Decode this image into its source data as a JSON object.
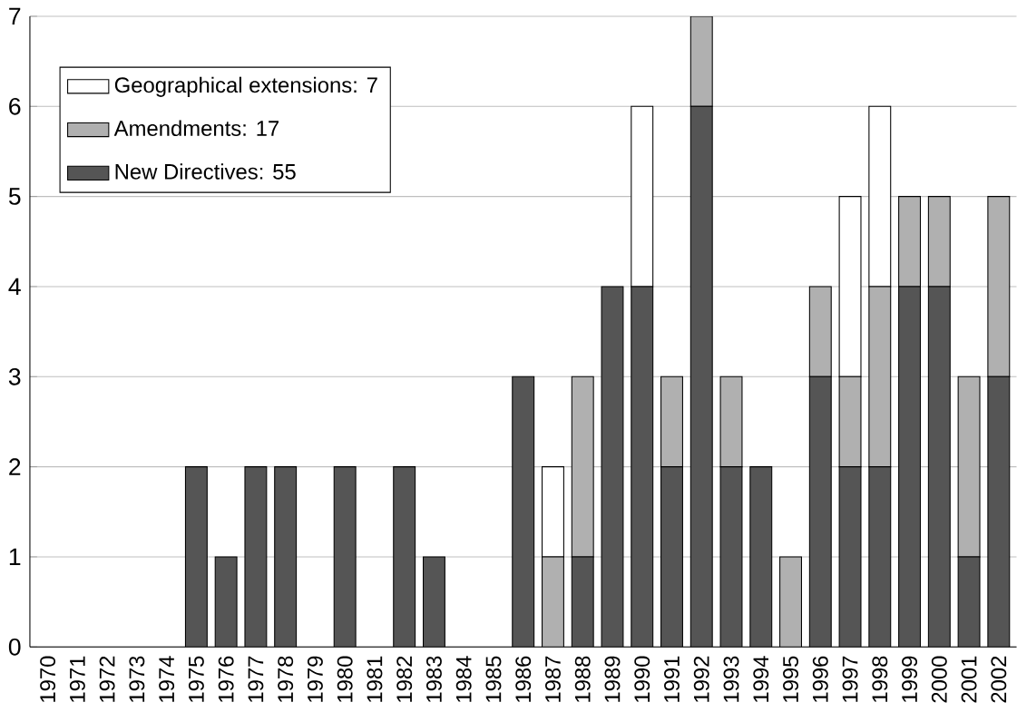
{
  "chart_data": {
    "type": "bar",
    "stacked": true,
    "categories": [
      "1970",
      "1971",
      "1972",
      "1973",
      "1974",
      "1975",
      "1976",
      "1977",
      "1978",
      "1979",
      "1980",
      "1981",
      "1982",
      "1983",
      "1984",
      "1985",
      "1986",
      "1987",
      "1988",
      "1989",
      "1990",
      "1991",
      "1992",
      "1993",
      "1994",
      "1995",
      "1996",
      "1997",
      "1998",
      "1999",
      "2000",
      "2001",
      "2002"
    ],
    "series": [
      {
        "name": "New Directives: 55",
        "color": "#555555",
        "values": [
          0,
          0,
          0,
          0,
          0,
          2,
          1,
          2,
          2,
          0,
          2,
          0,
          2,
          1,
          0,
          0,
          3,
          0,
          1,
          4,
          4,
          2,
          6,
          2,
          2,
          0,
          3,
          2,
          2,
          4,
          4,
          1,
          3
        ]
      },
      {
        "name": "Amendments: 17",
        "color": "#b0b0b0",
        "values": [
          0,
          0,
          0,
          0,
          0,
          0,
          0,
          0,
          0,
          0,
          0,
          0,
          0,
          0,
          0,
          0,
          0,
          1,
          2,
          0,
          0,
          1,
          1,
          1,
          0,
          1,
          1,
          1,
          2,
          1,
          1,
          2,
          2
        ]
      },
      {
        "name": "Geographical extensions: 7",
        "color": "#ffffff",
        "values": [
          0,
          0,
          0,
          0,
          0,
          0,
          0,
          0,
          0,
          0,
          0,
          0,
          0,
          0,
          0,
          0,
          0,
          1,
          0,
          0,
          2,
          0,
          0,
          0,
          0,
          0,
          0,
          2,
          2,
          0,
          0,
          0,
          0
        ]
      }
    ],
    "ylim": [
      0,
      7
    ],
    "yticks": [
      0,
      1,
      2,
      3,
      4,
      5,
      6,
      7
    ],
    "grid": "y",
    "legend": "top left"
  }
}
